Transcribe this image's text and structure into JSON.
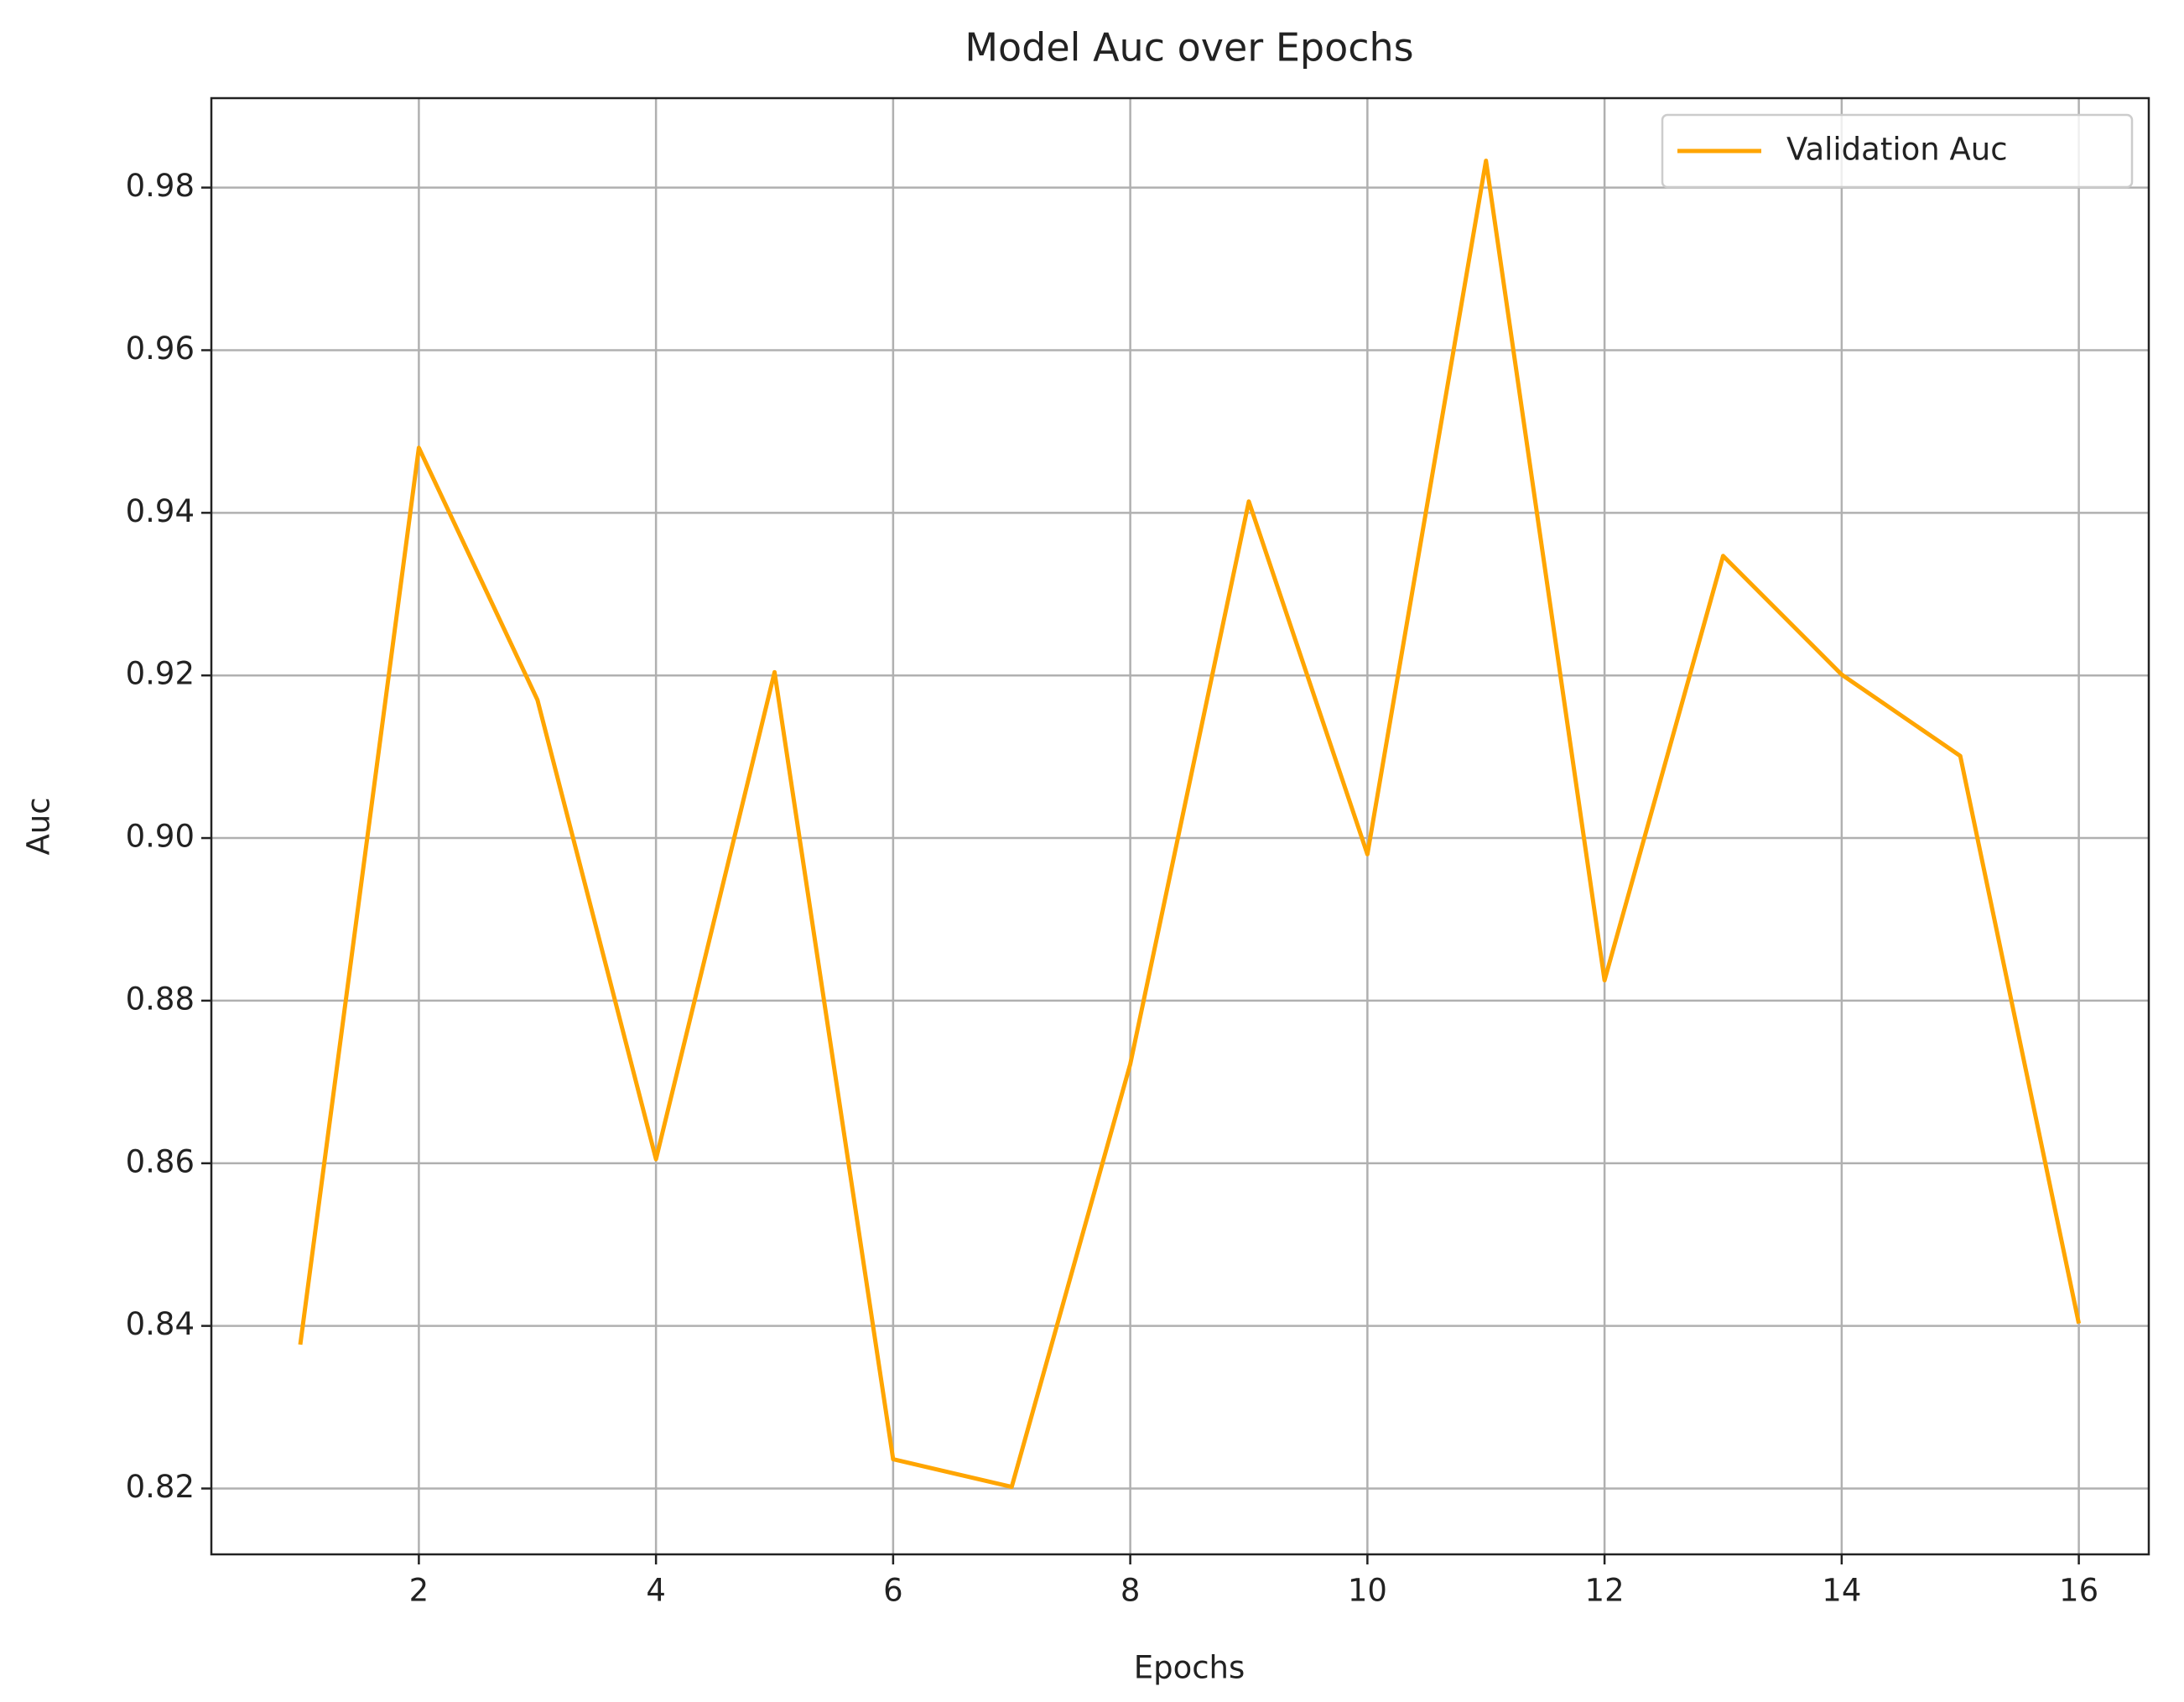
{
  "chart_data": {
    "type": "line",
    "title": "Model Auc over Epochs",
    "x_label": "Epochs",
    "y_label": "Auc",
    "x": [
      1,
      2,
      3,
      4,
      5,
      6,
      7,
      8,
      9,
      10,
      11,
      12,
      13,
      14,
      15,
      16
    ],
    "series": [
      {
        "name": "Validation Auc",
        "color": "#ffa500",
        "values": [
          0.8377,
          0.948,
          0.917,
          0.8605,
          0.9204,
          0.8236,
          0.8202,
          0.8722,
          0.9414,
          0.898,
          0.9833,
          0.8825,
          0.9347,
          0.9201,
          0.9101,
          0.8403
        ]
      }
    ],
    "xlim": [
      0.25,
      16.59
    ],
    "ylim": [
      0.8119,
      0.991
    ],
    "xticks": [
      2,
      4,
      6,
      8,
      10,
      12,
      14,
      16
    ],
    "yticks": [
      0.82,
      0.84,
      0.86,
      0.88,
      {
        "value": 0.9,
        "label": "0.90"
      },
      0.92,
      0.94,
      0.96,
      0.98
    ],
    "grid": true,
    "legend": "upper right"
  }
}
